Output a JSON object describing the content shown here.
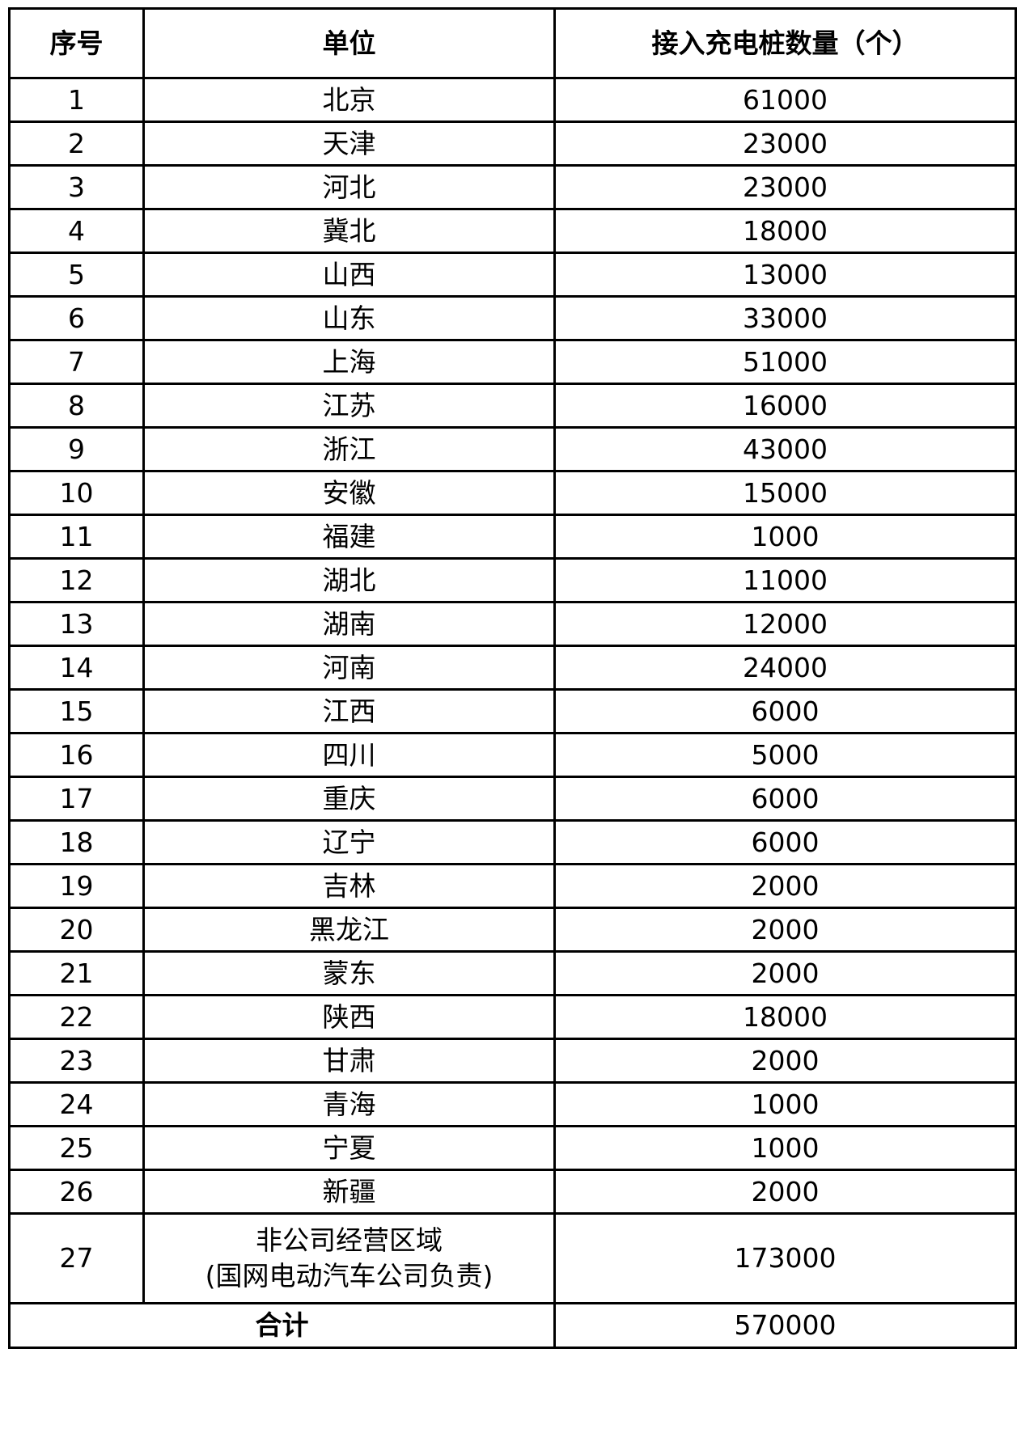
{
  "table": {
    "headers": [
      "序号",
      "单位",
      "接入充电桩数量（个）"
    ],
    "rows": [
      {
        "no": "1",
        "unit": "北京",
        "count": "61000"
      },
      {
        "no": "2",
        "unit": "天津",
        "count": "23000"
      },
      {
        "no": "3",
        "unit": "河北",
        "count": "23000"
      },
      {
        "no": "4",
        "unit": "冀北",
        "count": "18000"
      },
      {
        "no": "5",
        "unit": "山西",
        "count": "13000"
      },
      {
        "no": "6",
        "unit": "山东",
        "count": "33000"
      },
      {
        "no": "7",
        "unit": "上海",
        "count": "51000"
      },
      {
        "no": "8",
        "unit": "江苏",
        "count": "16000"
      },
      {
        "no": "9",
        "unit": "浙江",
        "count": "43000"
      },
      {
        "no": "10",
        "unit": "安徽",
        "count": "15000"
      },
      {
        "no": "11",
        "unit": "福建",
        "count": "1000"
      },
      {
        "no": "12",
        "unit": "湖北",
        "count": "11000"
      },
      {
        "no": "13",
        "unit": "湖南",
        "count": "12000"
      },
      {
        "no": "14",
        "unit": "河南",
        "count": "24000"
      },
      {
        "no": "15",
        "unit": "江西",
        "count": "6000"
      },
      {
        "no": "16",
        "unit": "四川",
        "count": "5000"
      },
      {
        "no": "17",
        "unit": "重庆",
        "count": "6000"
      },
      {
        "no": "18",
        "unit": "辽宁",
        "count": "6000"
      },
      {
        "no": "19",
        "unit": "吉林",
        "count": "2000"
      },
      {
        "no": "20",
        "unit": "黑龙江",
        "count": "2000"
      },
      {
        "no": "21",
        "unit": "蒙东",
        "count": "2000"
      },
      {
        "no": "22",
        "unit": "陕西",
        "count": "18000"
      },
      {
        "no": "23",
        "unit": "甘肃",
        "count": "2000"
      },
      {
        "no": "24",
        "unit": "青海",
        "count": "1000"
      },
      {
        "no": "25",
        "unit": "宁夏",
        "count": "1000"
      },
      {
        "no": "26",
        "unit": "新疆",
        "count": "2000"
      }
    ],
    "last_row": {
      "no": "27",
      "unit_line1": "非公司经营区域",
      "unit_line2": "(国网电动汽车公司负责)",
      "count": "173000"
    },
    "total": {
      "label": "合计",
      "count": "570000"
    }
  }
}
